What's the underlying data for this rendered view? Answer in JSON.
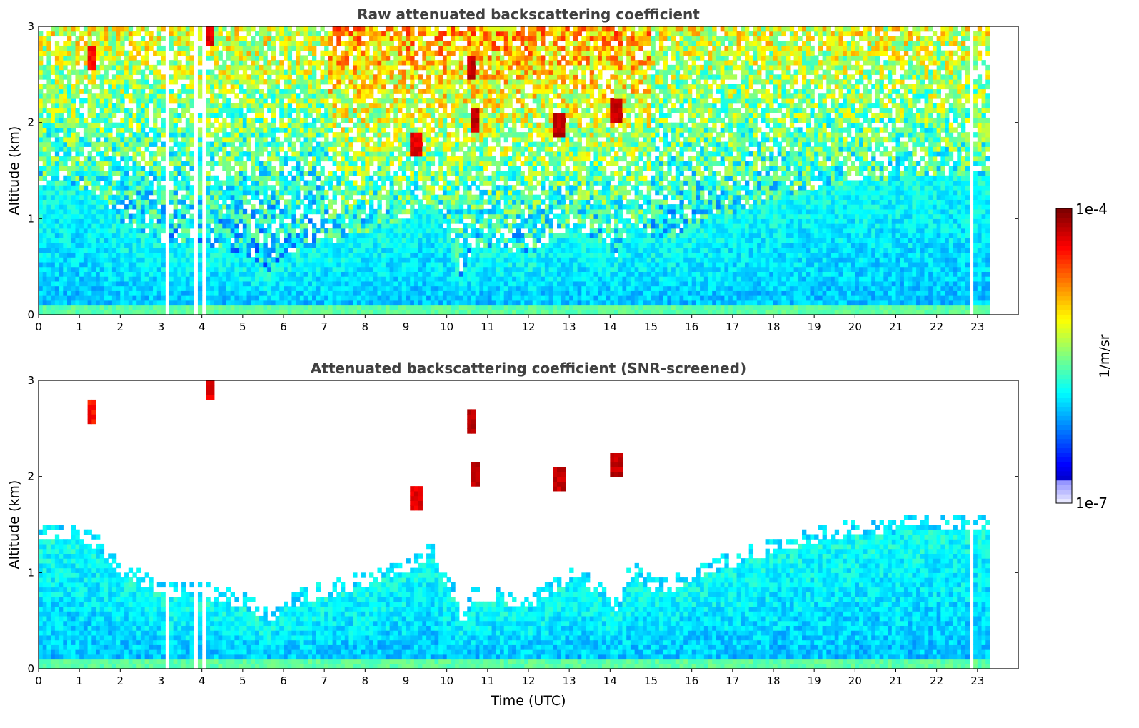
{
  "chart_data": [
    {
      "type": "heatmap",
      "title": "Raw attenuated backscattering coefficient",
      "xlabel": "",
      "ylabel": "Altitude (km)",
      "xlim": [
        0,
        24
      ],
      "ylim": [
        0,
        3
      ],
      "x_ticks": [
        "0",
        "1",
        "2",
        "3",
        "4",
        "5",
        "6",
        "7",
        "8",
        "9",
        "10",
        "11",
        "12",
        "13",
        "14",
        "15",
        "16",
        "17",
        "18",
        "19",
        "20",
        "21",
        "22",
        "23"
      ],
      "y_ticks": [
        "0",
        "1",
        "2",
        "3"
      ],
      "data_extent_hours": [
        0,
        23.3
      ],
      "gap_times_hours": [
        3.12,
        3.8,
        4.05,
        22.55,
        22.8
      ],
      "signal_description_log10": {
        "near_surface": -5.8,
        "boundary_layer": -6.0,
        "upper_noise": -5.3,
        "cloud_features": [
          {
            "t": 10.55,
            "alt": 2.55,
            "log10": -4.1
          },
          {
            "t": 10.65,
            "alt": 2.0,
            "log10": -4.1
          },
          {
            "t": 12.7,
            "alt": 1.95,
            "log10": -4.1
          },
          {
            "t": 14.1,
            "alt": 2.1,
            "log10": -4.1
          },
          {
            "t": 9.2,
            "alt": 1.75,
            "log10": -4.2
          },
          {
            "t": 1.25,
            "alt": 2.65,
            "log10": -4.3
          },
          {
            "t": 4.1,
            "alt": 2.9,
            "log10": -4.2
          }
        ]
      }
    },
    {
      "type": "heatmap",
      "title": "Attenuated backscattering coefficient (SNR-screened)",
      "xlabel": "Time (UTC)",
      "ylabel": "Altitude (km)",
      "xlim": [
        0,
        24
      ],
      "ylim": [
        0,
        3
      ],
      "x_ticks": [
        "0",
        "1",
        "2",
        "3",
        "4",
        "5",
        "6",
        "7",
        "8",
        "9",
        "10",
        "11",
        "12",
        "13",
        "14",
        "15",
        "16",
        "17",
        "18",
        "19",
        "20",
        "21",
        "22",
        "23"
      ],
      "y_ticks": [
        "0",
        "1",
        "2",
        "3"
      ],
      "data_extent_hours": [
        0,
        23.3
      ],
      "boundary_layer_top_km": [
        [
          0,
          1.35
        ],
        [
          1,
          1.3
        ],
        [
          1.5,
          1.2
        ],
        [
          2,
          0.95
        ],
        [
          3,
          0.75
        ],
        [
          4,
          0.72
        ],
        [
          5,
          0.62
        ],
        [
          5.6,
          0.42
        ],
        [
          6,
          0.62
        ],
        [
          7,
          0.72
        ],
        [
          8,
          0.85
        ],
        [
          9,
          0.98
        ],
        [
          9.6,
          1.15
        ],
        [
          10.1,
          0.72
        ],
        [
          10.3,
          0.38
        ],
        [
          10.6,
          0.65
        ],
        [
          11,
          0.7
        ],
        [
          12,
          0.6
        ],
        [
          13,
          0.9
        ],
        [
          13.8,
          0.72
        ],
        [
          14.1,
          0.55
        ],
        [
          14.5,
          0.95
        ],
        [
          15,
          0.78
        ],
        [
          15.5,
          0.8
        ],
        [
          16,
          0.92
        ],
        [
          17,
          1.05
        ],
        [
          18,
          1.18
        ],
        [
          19,
          1.3
        ],
        [
          20,
          1.38
        ],
        [
          21,
          1.4
        ],
        [
          22,
          1.45
        ],
        [
          23.3,
          1.45
        ]
      ]
    }
  ],
  "colorbar": {
    "label": "1/m/sr",
    "max_label": "1e-4",
    "min_label": "1e-7",
    "range_log10": [
      -7,
      -4
    ],
    "colormap": "jet"
  }
}
